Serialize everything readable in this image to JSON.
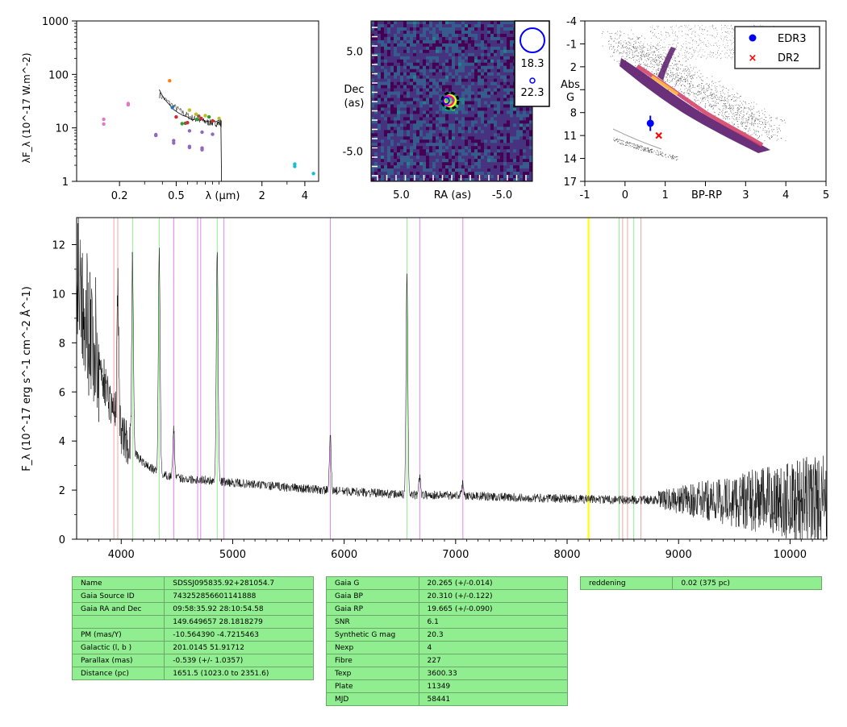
{
  "chart_data": [
    {
      "type": "scatter",
      "title": "",
      "xlabel": "λ (μm)",
      "ylabel": "λF_λ (10^-17 W.m^-2)",
      "xscale": "log",
      "yscale": "log",
      "xlim": [
        0.1,
        5.0
      ],
      "ylim": [
        1,
        1000
      ],
      "xticks": [
        "0.2",
        "0.5",
        "2",
        "4"
      ],
      "yticks": [
        "1",
        "10",
        "100",
        "1000"
      ],
      "series": [
        {
          "color": "#e377c2",
          "points": [
            [
              0.155,
              14.5
            ],
            [
              0.155,
              11.8
            ],
            [
              0.23,
              28.5
            ],
            [
              0.23,
              27.0
            ]
          ]
        },
        {
          "color": "#9467bd",
          "points": [
            [
              0.36,
              7.5
            ],
            [
              0.36,
              7.2
            ],
            [
              0.48,
              5.8
            ],
            [
              0.48,
              5.2
            ],
            [
              0.62,
              4.5
            ],
            [
              0.62,
              4.3
            ],
            [
              0.76,
              4.2
            ],
            [
              0.76,
              3.9
            ],
            [
              0.76,
              8.3
            ],
            [
              0.9,
              7.6
            ],
            [
              0.62,
              8.8
            ]
          ]
        },
        {
          "color": "#ff7f0e",
          "points": [
            [
              0.45,
              76
            ]
          ]
        },
        {
          "color": "#1f77b4",
          "points": [
            [
              0.47,
              24
            ]
          ]
        },
        {
          "color": "#d62728",
          "points": [
            [
              0.5,
              16
            ],
            [
              0.6,
              12.5
            ],
            [
              0.75,
              15
            ],
            [
              0.9,
              13.5
            ]
          ]
        },
        {
          "color": "#2ca02c",
          "points": [
            [
              0.55,
              12
            ],
            [
              0.7,
              14.5
            ],
            [
              0.85,
              16
            ]
          ]
        },
        {
          "color": "#bcbd22",
          "points": [
            [
              0.62,
              21.5
            ],
            [
              0.69,
              18
            ],
            [
              0.8,
              17
            ],
            [
              1.0,
              15
            ]
          ]
        },
        {
          "color": "#8c564b",
          "points": [
            [
              0.58,
              12.2
            ],
            [
              0.72,
              16.5
            ]
          ]
        },
        {
          "color": "#17becf",
          "points": [
            [
              3.4,
              2.1
            ],
            [
              3.4,
              1.9
            ],
            [
              4.6,
              1.4
            ]
          ]
        }
      ],
      "spectrum_sed": [
        [
          0.38,
          52
        ],
        [
          0.4,
          40
        ],
        [
          0.42,
          33
        ],
        [
          0.45,
          27
        ],
        [
          0.48,
          22
        ],
        [
          0.52,
          19
        ],
        [
          0.56,
          17
        ],
        [
          0.6,
          16
        ],
        [
          0.65,
          14
        ],
        [
          0.7,
          15
        ],
        [
          0.75,
          14.5
        ],
        [
          0.8,
          13.5
        ],
        [
          0.85,
          13
        ],
        [
          0.9,
          13.5
        ],
        [
          0.95,
          13
        ],
        [
          1.0,
          14
        ],
        [
          1.03,
          14
        ],
        [
          1.04,
          1
        ]
      ]
    },
    {
      "type": "heatmap",
      "title": "",
      "xlabel": "RA (as)",
      "ylabel": "Dec (as)",
      "xlim": [
        8.0,
        -8.0
      ],
      "ylim": [
        -8.0,
        8.0
      ],
      "xticks": [
        "5.0",
        "-5.0"
      ],
      "yticks": [
        "5.0",
        "-5.0"
      ],
      "legend": {
        "placement": "top-right",
        "entries": [
          "18.3",
          "22.3"
        ]
      }
    },
    {
      "type": "scatter",
      "title": "",
      "xlabel": "BP-RP",
      "ylabel": "Abs G",
      "xlim": [
        -1,
        5
      ],
      "ylim": [
        17,
        -4
      ],
      "xticks": [
        "-1",
        "0",
        "1",
        "2",
        "3",
        "4",
        "5"
      ],
      "yticks": [
        "-4",
        "-1",
        "2",
        "5",
        "8",
        "11",
        "14",
        "17"
      ],
      "legend": {
        "placement": "top-right",
        "entries": [
          "EDR3",
          "DR2"
        ]
      },
      "points": [
        {
          "name": "EDR3",
          "x": 0.63,
          "y": 9.4,
          "yerr": 1.0,
          "color": "#0000ff",
          "marker": "circle"
        },
        {
          "name": "DR2",
          "x": 0.84,
          "y": 11.0,
          "color": "#ff0000",
          "marker": "x"
        }
      ]
    },
    {
      "type": "line",
      "title": "",
      "xlabel": "",
      "ylabel": "F_λ (10^-17 erg s^-1 cm^-2 Å^-1)",
      "xlim": [
        3600,
        10330
      ],
      "ylim": [
        0,
        13.1
      ],
      "xticks": [
        "4000",
        "5000",
        "6000",
        "7000",
        "8000",
        "9000",
        "10000"
      ],
      "yticks": [
        "0",
        "2",
        "4",
        "6",
        "8",
        "10",
        "12"
      ],
      "lines": [
        {
          "x": 3934,
          "color": "#f4a6a6"
        },
        {
          "x": 3969,
          "color": "#f4a6a6"
        },
        {
          "x": 4102,
          "color": "#90ee90"
        },
        {
          "x": 4341,
          "color": "#90ee90"
        },
        {
          "x": 4471,
          "color": "#dd88ee"
        },
        {
          "x": 4686,
          "color": "#dd88ee"
        },
        {
          "x": 4713,
          "color": "#dd88ee"
        },
        {
          "x": 4861,
          "color": "#90ee90"
        },
        {
          "x": 4922,
          "color": "#dd88ee"
        },
        {
          "x": 5876,
          "color": "#dd88ee"
        },
        {
          "x": 6563,
          "color": "#90ee90"
        },
        {
          "x": 6678,
          "color": "#dd88ee"
        },
        {
          "x": 7065,
          "color": "#dd88ee"
        },
        {
          "x": 8190,
          "color": "#ffff00"
        },
        {
          "x": 8195,
          "color": "#ffff00"
        },
        {
          "x": 8498,
          "color": "#f4a6a6"
        },
        {
          "x": 8542,
          "color": "#f4a6a6"
        },
        {
          "x": 8662,
          "color": "#f4a6a6"
        },
        {
          "x": 8467,
          "color": "#90ee90"
        },
        {
          "x": 8598,
          "color": "#90ee90"
        }
      ],
      "continuum": [
        [
          3600,
          11.5
        ],
        [
          3700,
          9.0
        ],
        [
          3800,
          7.2
        ],
        [
          3900,
          5.6
        ],
        [
          4000,
          4.4
        ],
        [
          4100,
          3.6
        ],
        [
          4200,
          3.1
        ],
        [
          4300,
          2.8
        ],
        [
          4400,
          2.6
        ],
        [
          4500,
          2.5
        ],
        [
          4600,
          2.45
        ],
        [
          4800,
          2.4
        ],
        [
          5000,
          2.3
        ],
        [
          5400,
          2.15
        ],
        [
          5800,
          2.0
        ],
        [
          6200,
          1.9
        ],
        [
          6600,
          1.8
        ],
        [
          7000,
          1.8
        ],
        [
          7500,
          1.7
        ],
        [
          8000,
          1.65
        ],
        [
          8500,
          1.6
        ],
        [
          9000,
          1.6
        ],
        [
          9500,
          1.55
        ],
        [
          10000,
          1.6
        ],
        [
          10330,
          1.6
        ]
      ],
      "emission_lines": [
        [
          3970,
          5.5
        ],
        [
          4102,
          7.5
        ],
        [
          4341,
          9.0
        ],
        [
          4471,
          2.0
        ],
        [
          4861,
          9.5
        ],
        [
          5876,
          2.2
        ],
        [
          6563,
          9.0
        ],
        [
          6678,
          0.8
        ],
        [
          7065,
          0.5
        ]
      ]
    }
  ],
  "tables": {
    "left": [
      [
        "Name",
        "SDSSJ095835.92+281054.7"
      ],
      [
        "Gaia Source ID",
        "743252856601141888"
      ],
      [
        "Gaia RA and Dec",
        "09:58:35.92    28:10:54.58"
      ],
      [
        "",
        "149.649657    28.1818279"
      ],
      [
        "PM (mas/Y)",
        "-10.564390    -4.7215463"
      ],
      [
        "Galactic (l, b )",
        "201.0145    51.91712"
      ],
      [
        "Parallax (mas)",
        "-0.539 (+/- 1.0357)"
      ],
      [
        "Distance (pc)",
        "1651.5 (1023.0 to 2351.6)"
      ]
    ],
    "middle": [
      [
        "Gaia G",
        "20.265 (+/-0.014)"
      ],
      [
        "Gaia BP",
        "20.310 (+/-0.122)"
      ],
      [
        "Gaia RP",
        "19.665 (+/-0.090)"
      ],
      [
        "SNR",
        "6.1"
      ],
      [
        "Synthetic G mag",
        "20.3"
      ],
      [
        "Nexp",
        "4"
      ],
      [
        "Fibre",
        "227"
      ],
      [
        "Texp",
        "3600.33"
      ],
      [
        "Plate",
        "11349"
      ],
      [
        "MJD",
        "58441"
      ]
    ],
    "right": [
      [
        "reddening",
        "0.02 (375 pc)"
      ]
    ]
  }
}
